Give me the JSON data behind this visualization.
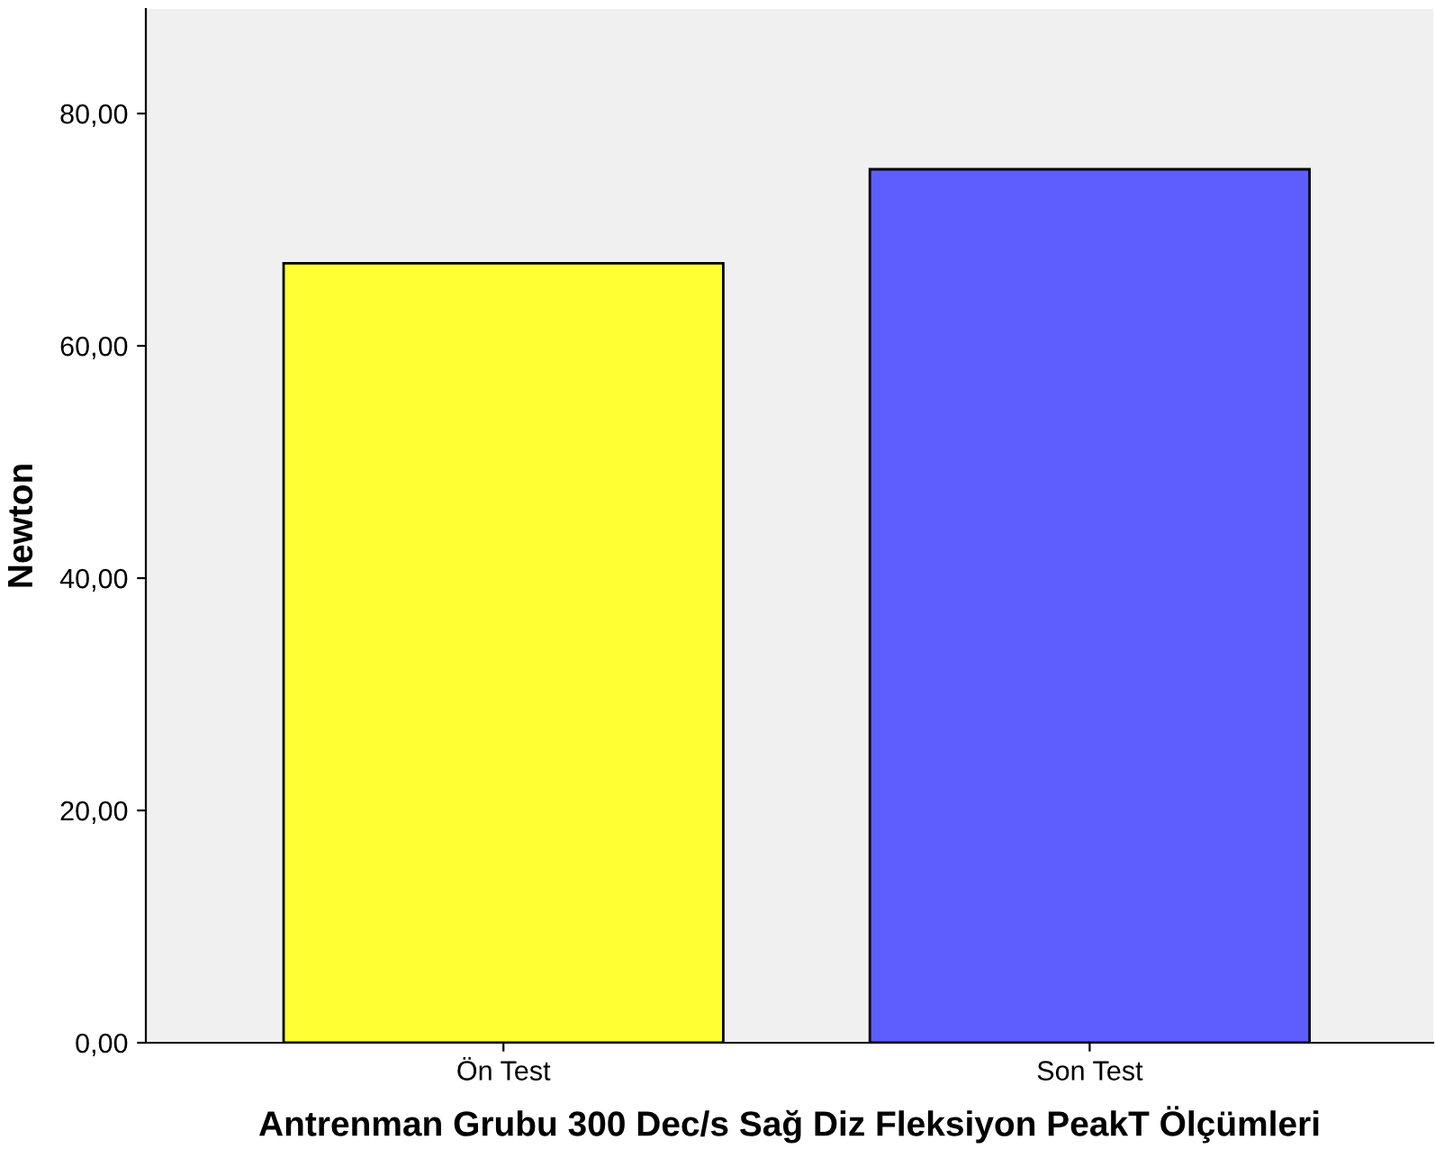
{
  "chart_data": {
    "type": "bar",
    "xlabel": "Antrenman Grubu 300 Dec/s Sağ Diz Fleksiyon PeakT Ölçümleri",
    "ylabel": "Newton",
    "categories": [
      "Ön Test",
      "Son Test"
    ],
    "values": [
      67.1,
      75.2
    ],
    "colors": [
      "#ffff33",
      "#5e5eff"
    ],
    "ylim": [
      0,
      89
    ],
    "yticks": [
      {
        "value": 0,
        "label": "0,00"
      },
      {
        "value": 20,
        "label": "20,00"
      },
      {
        "value": 40,
        "label": "40,00"
      },
      {
        "value": 60,
        "label": "60,00"
      },
      {
        "value": 80,
        "label": "80,00"
      }
    ],
    "grid": false,
    "legend": false
  }
}
